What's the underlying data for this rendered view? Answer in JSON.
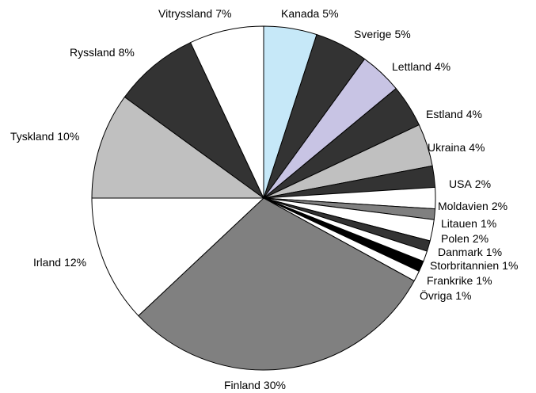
{
  "chart_data": {
    "type": "pie",
    "categories": [
      "Kanada",
      "Sverige",
      "Lettland",
      "Estland",
      "Ukraina",
      "USA",
      "Moldavien",
      "Litauen",
      "Polen",
      "Danmark",
      "Storbritannien",
      "Frankrike",
      "Övriga",
      "Finland",
      "Irland",
      "Tyskland",
      "Ryssland",
      "Vitryssland"
    ],
    "values": [
      5,
      5,
      4,
      4,
      4,
      2,
      2,
      1,
      2,
      1,
      1,
      1,
      1,
      30,
      12,
      10,
      8,
      7
    ],
    "value_labels": [
      "5%",
      "5%",
      "4%",
      "4%",
      "4%",
      "2%",
      "2%",
      "1%",
      "2%",
      "1%",
      "1%",
      "1%",
      "1%",
      "30%",
      "12%",
      "10%",
      "8%",
      "7%"
    ],
    "colors": [
      "#c6e8f8",
      "#333333",
      "#c8c4e4",
      "#333333",
      "#c0c0c0",
      "#333333",
      "#ffffff",
      "#808080",
      "#ffffff",
      "#333333",
      "#ffffff",
      "#000000",
      "#ffffff",
      "#808080",
      "#ffffff",
      "#c0c0c0",
      "#333333",
      "#ffffff"
    ]
  }
}
